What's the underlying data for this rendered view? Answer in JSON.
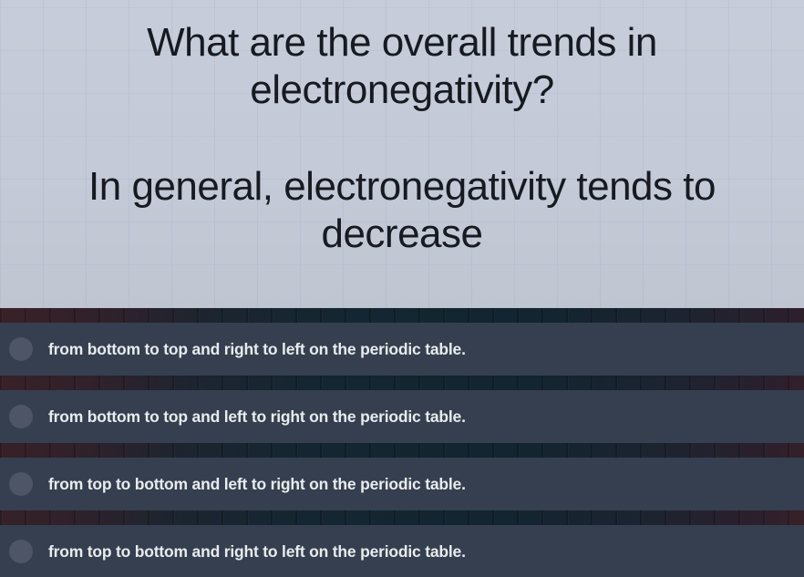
{
  "question": {
    "lines": [
      "What are the overall trends in",
      "electronegativity?"
    ]
  },
  "answer": {
    "lines": [
      "In general, electronegativity tends to",
      "decrease"
    ]
  },
  "options": [
    "from bottom to top and right to left on the periodic table.",
    "from bottom to top and left to right on the periodic table.",
    "from top to bottom and left to right on the periodic table.",
    "from top to bottom and right to left on the periodic table."
  ],
  "colors": {
    "question_bg": "#c4cad7",
    "question_text": "#171a21",
    "option_bg": "#353f4f",
    "option_text": "#e9ecef",
    "radio_fill": "#4d5566",
    "panel_teal": "#142631",
    "panel_maroon": "#3a2127"
  }
}
